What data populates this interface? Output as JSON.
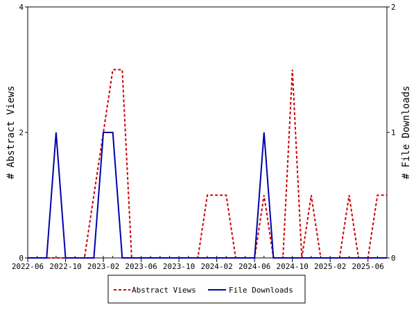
{
  "chart_data": {
    "type": "line",
    "x_ticks": [
      "2022-06",
      "2022-10",
      "2023-02",
      "2023-06",
      "2023-10",
      "2024-02",
      "2024-06",
      "2024-10",
      "2025-02",
      "2025-06"
    ],
    "xlim": [
      "2022-06",
      "2025-08"
    ],
    "y_left": {
      "label": "# Abstract Views",
      "lim": [
        0,
        4
      ],
      "ticks": [
        "0",
        "2",
        "4"
      ]
    },
    "y_right": {
      "label": "# File Downloads",
      "lim": [
        0,
        2
      ],
      "ticks": [
        "0",
        "1",
        "2"
      ]
    },
    "grid": false,
    "legend_position": "bottom-center",
    "series": [
      {
        "name": "Abstract Views",
        "axis": "left",
        "color": "#cc0000",
        "style": "dashed",
        "points": [
          [
            "2022-06",
            0
          ],
          [
            "2022-07",
            0
          ],
          [
            "2022-08",
            0
          ],
          [
            "2022-09",
            0
          ],
          [
            "2022-10",
            0
          ],
          [
            "2022-11",
            0
          ],
          [
            "2022-12",
            0
          ],
          [
            "2023-01",
            1
          ],
          [
            "2023-02",
            2
          ],
          [
            "2023-03",
            3
          ],
          [
            "2023-04",
            3
          ],
          [
            "2023-05",
            0
          ],
          [
            "2023-06",
            0
          ],
          [
            "2023-07",
            0
          ],
          [
            "2023-08",
            0
          ],
          [
            "2023-09",
            0
          ],
          [
            "2023-10",
            0
          ],
          [
            "2023-11",
            0
          ],
          [
            "2023-12",
            0
          ],
          [
            "2024-01",
            1
          ],
          [
            "2024-02",
            1
          ],
          [
            "2024-03",
            1
          ],
          [
            "2024-04",
            0
          ],
          [
            "2024-05",
            0
          ],
          [
            "2024-06",
            0
          ],
          [
            "2024-07",
            1
          ],
          [
            "2024-08",
            0
          ],
          [
            "2024-09",
            0
          ],
          [
            "2024-10",
            3
          ],
          [
            "2024-11",
            0
          ],
          [
            "2024-12",
            1
          ],
          [
            "2025-01",
            0
          ],
          [
            "2025-02",
            0
          ],
          [
            "2025-03",
            0
          ],
          [
            "2025-04",
            1
          ],
          [
            "2025-05",
            0
          ],
          [
            "2025-06",
            0
          ],
          [
            "2025-07",
            1
          ],
          [
            "2025-08",
            1
          ]
        ]
      },
      {
        "name": "File Downloads",
        "axis": "right",
        "color": "#0000aa",
        "style": "solid",
        "points": [
          [
            "2022-06",
            0
          ],
          [
            "2022-07",
            0
          ],
          [
            "2022-08",
            0
          ],
          [
            "2022-09",
            1
          ],
          [
            "2022-10",
            0
          ],
          [
            "2022-11",
            0
          ],
          [
            "2022-12",
            0
          ],
          [
            "2023-01",
            0
          ],
          [
            "2023-02",
            1
          ],
          [
            "2023-03",
            1
          ],
          [
            "2023-04",
            0
          ],
          [
            "2023-05",
            0
          ],
          [
            "2023-06",
            0
          ],
          [
            "2023-07",
            0
          ],
          [
            "2023-08",
            0
          ],
          [
            "2023-09",
            0
          ],
          [
            "2023-10",
            0
          ],
          [
            "2023-11",
            0
          ],
          [
            "2023-12",
            0
          ],
          [
            "2024-01",
            0
          ],
          [
            "2024-02",
            0
          ],
          [
            "2024-03",
            0
          ],
          [
            "2024-04",
            0
          ],
          [
            "2024-05",
            0
          ],
          [
            "2024-06",
            0
          ],
          [
            "2024-07",
            1
          ],
          [
            "2024-08",
            0
          ],
          [
            "2024-09",
            0
          ],
          [
            "2024-10",
            0
          ],
          [
            "2024-11",
            0
          ],
          [
            "2024-12",
            0
          ],
          [
            "2025-01",
            0
          ],
          [
            "2025-02",
            0
          ],
          [
            "2025-03",
            0
          ],
          [
            "2025-04",
            0
          ],
          [
            "2025-05",
            0
          ],
          [
            "2025-06",
            0
          ],
          [
            "2025-07",
            0
          ],
          [
            "2025-08",
            0
          ]
        ]
      }
    ]
  }
}
